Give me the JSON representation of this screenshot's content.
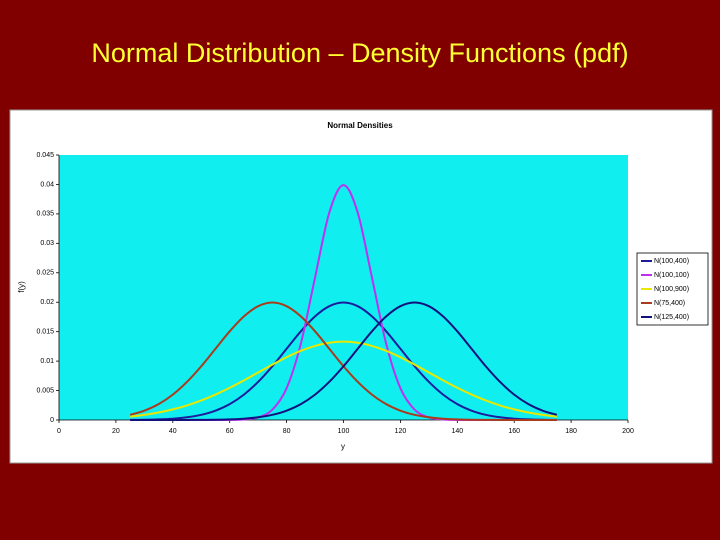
{
  "slide_title": "Normal Distribution – Density Functions (pdf)",
  "chart_data": {
    "type": "line",
    "title": "Normal Densities",
    "x_label": "y",
    "y_label": "f(y)",
    "x": [
      25,
      30,
      35,
      40,
      45,
      50,
      55,
      60,
      65,
      70,
      75,
      80,
      85,
      90,
      95,
      100,
      105,
      110,
      115,
      120,
      125,
      130,
      135,
      140,
      145,
      150,
      155,
      160,
      165,
      170,
      175
    ],
    "series": [
      {
        "name": "N(100,400)",
        "color": "#1c1c9c",
        "values": [
          2e-05,
          4e-05,
          0.0001,
          0.00022,
          0.00046,
          0.00088,
          0.00159,
          0.0027,
          0.00431,
          0.00648,
          0.00913,
          0.0121,
          0.01506,
          0.0176,
          0.01933,
          0.01995,
          0.01933,
          0.0176,
          0.01506,
          0.0121,
          0.00913,
          0.00648,
          0.00431,
          0.0027,
          0.00159,
          0.00088,
          0.00046,
          0.00022,
          0.0001,
          4e-05,
          2e-05
        ]
      },
      {
        "name": "N(100,100)",
        "color": "#c030f0",
        "values": [
          0,
          0,
          0,
          0,
          0,
          0,
          0,
          1e-05,
          9e-05,
          0.00044,
          0.00175,
          0.0054,
          0.01295,
          0.0242,
          0.03521,
          0.03989,
          0.03521,
          0.0242,
          0.01295,
          0.0054,
          0.00175,
          0.00044,
          9e-05,
          1e-05,
          0,
          0,
          0,
          0,
          0,
          0,
          0
        ]
      },
      {
        "name": "N(100,900)",
        "color": "#e8e800",
        "values": [
          0.00058,
          0.00087,
          0.00127,
          0.0018,
          0.00248,
          0.00332,
          0.00432,
          0.00547,
          0.00673,
          0.00807,
          0.0094,
          0.01065,
          0.01174,
          0.01258,
          0.01312,
          0.0133,
          0.01312,
          0.01258,
          0.01174,
          0.01065,
          0.0094,
          0.00807,
          0.00673,
          0.00547,
          0.00432,
          0.00332,
          0.00248,
          0.0018,
          0.00127,
          0.00087,
          0.00058
        ]
      },
      {
        "name": "N(75,400)",
        "color": "#a83c1c",
        "values": [
          0.00088,
          0.00159,
          0.0027,
          0.00431,
          0.00648,
          0.00913,
          0.0121,
          0.01506,
          0.0176,
          0.01933,
          0.01995,
          0.01933,
          0.0176,
          0.01506,
          0.0121,
          0.00913,
          0.00648,
          0.00431,
          0.0027,
          0.00159,
          0.00088,
          0.00046,
          0.00022,
          0.0001,
          4e-05,
          2e-05,
          1e-05,
          0,
          0,
          0,
          0
        ]
      },
      {
        "name": "N(125,400)",
        "color": "#12127e",
        "values": [
          0,
          0,
          0,
          0,
          1e-05,
          2e-05,
          4e-05,
          0.0001,
          0.00022,
          0.00046,
          0.00088,
          0.00159,
          0.0027,
          0.00431,
          0.00648,
          0.00913,
          0.0121,
          0.01506,
          0.0176,
          0.01933,
          0.01995,
          0.01933,
          0.0176,
          0.01506,
          0.0121,
          0.00913,
          0.00648,
          0.00431,
          0.0027,
          0.00159,
          0.00088
        ]
      }
    ],
    "xlim": [
      0,
      200
    ],
    "ylim": [
      0,
      0.045
    ],
    "xticks": [
      0,
      20,
      40,
      60,
      80,
      100,
      120,
      140,
      160,
      180,
      200
    ],
    "yticks": [
      0,
      0.005,
      0.01,
      0.015,
      0.02,
      0.025,
      0.03,
      0.035,
      0.04,
      0.045
    ],
    "grid": false,
    "legend": "right"
  }
}
